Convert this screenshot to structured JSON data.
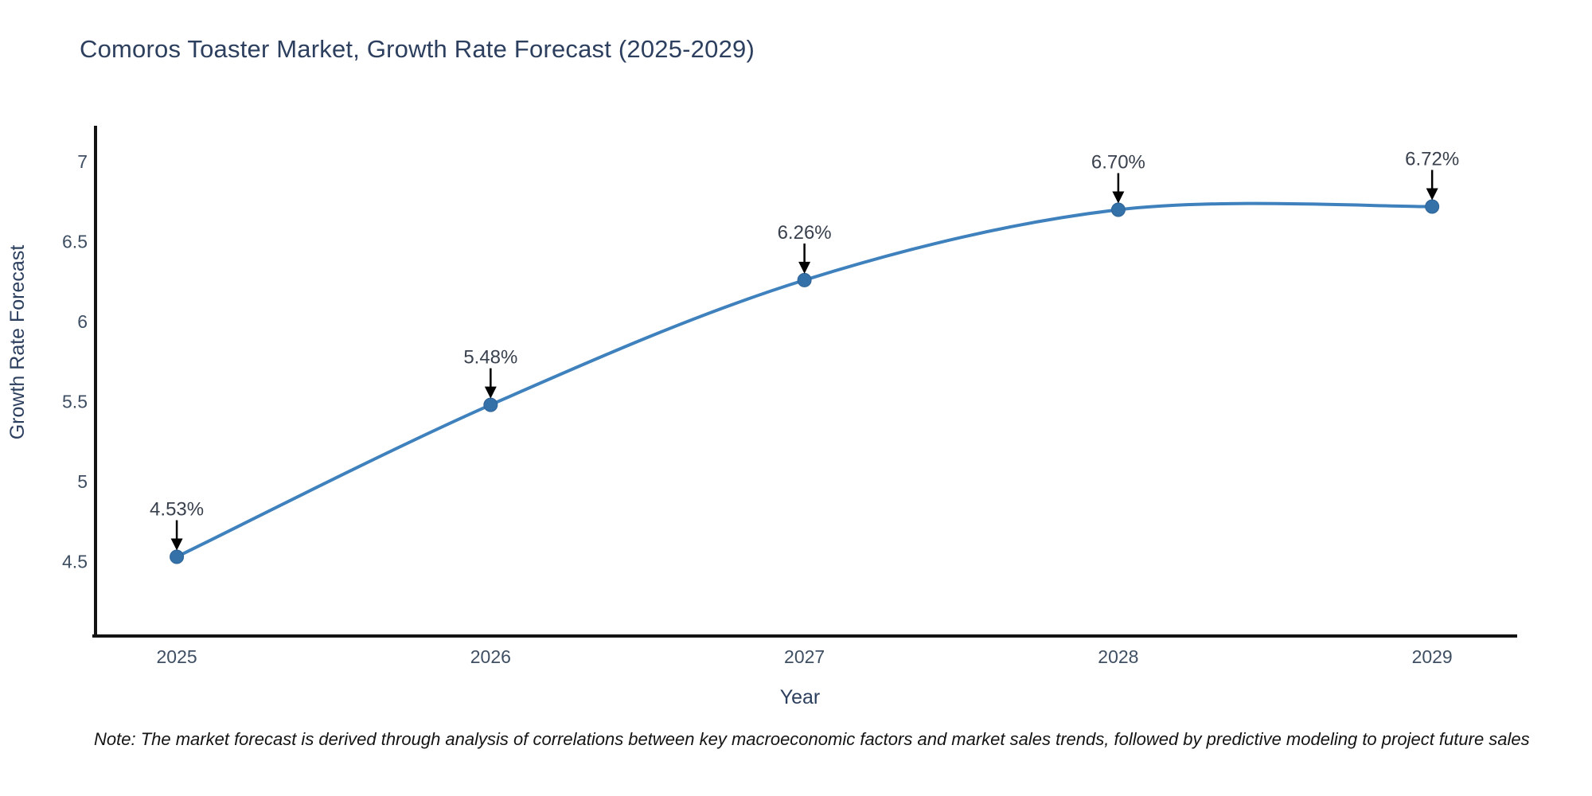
{
  "title": "Comoros Toaster Market, Growth Rate Forecast (2025-2029)",
  "note": "Note: The market forecast is derived through analysis of correlations between key macroeconomic factors and market sales trends, followed by predictive modeling to project future sales",
  "chart_data": {
    "type": "line",
    "title": "Comoros Toaster Market, Growth Rate Forecast (2025-2029)",
    "xlabel": "Year",
    "ylabel": "Growth Rate Forecast",
    "x": [
      2025,
      2026,
      2027,
      2028,
      2029
    ],
    "categories": [
      "2025",
      "2026",
      "2027",
      "2028",
      "2029"
    ],
    "series": [
      {
        "name": "Growth Rate Forecast",
        "values": [
          4.53,
          5.48,
          6.26,
          6.7,
          6.72
        ],
        "point_labels": [
          "4.53%",
          "5.48%",
          "6.26%",
          "6.70%",
          "6.72%"
        ]
      }
    ],
    "yticks": [
      4.5,
      5,
      5.5,
      6,
      6.5,
      7
    ],
    "ytick_labels": [
      "4.5",
      "5",
      "5.5",
      "6",
      "6.5",
      "7"
    ],
    "xlim": [
      2024.736,
      2029.271
    ],
    "ylim": [
      4.035,
      7.225
    ],
    "grid": false,
    "legend": "none",
    "smooth": true,
    "annotations_have_arrows": true
  },
  "colors": {
    "line": "#3e81bd",
    "marker": "#3571a9",
    "marker_edge": "#2e6396",
    "axis_line": "#131313",
    "title_text": "#2c3f5e",
    "tick_text": "#3f4f63",
    "annotation_text": "#3a414e",
    "arrow": "#000000",
    "note_text": "#141414",
    "background": "#ffffff"
  }
}
